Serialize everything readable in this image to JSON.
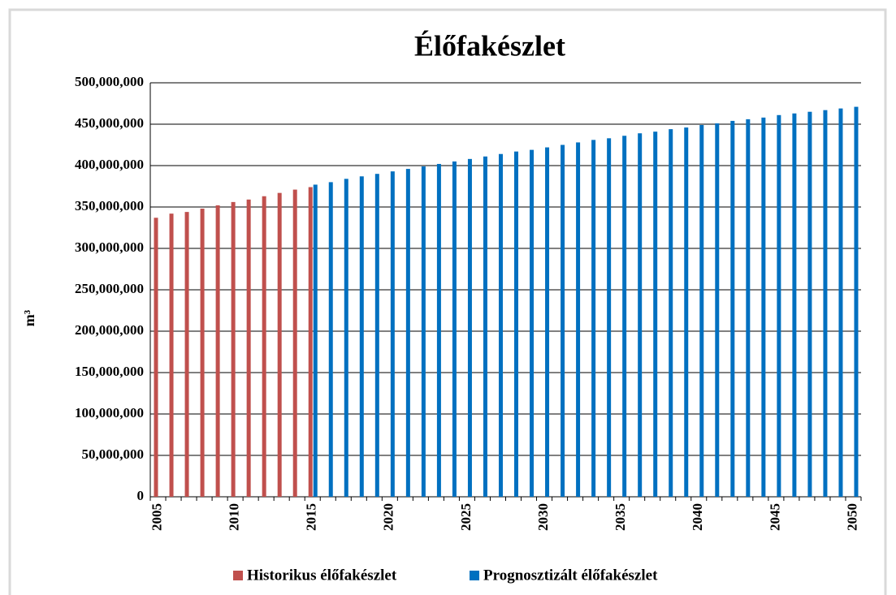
{
  "chart_data": {
    "type": "bar",
    "title": "Élőfakészlet",
    "y_label": "m³",
    "categories": [
      "2005",
      null,
      null,
      null,
      null,
      "2010",
      null,
      null,
      null,
      null,
      "2015",
      null,
      null,
      null,
      null,
      "2020",
      null,
      null,
      null,
      null,
      "2025",
      null,
      null,
      null,
      null,
      "2030",
      null,
      null,
      null,
      null,
      "2035",
      null,
      null,
      null,
      null,
      "2040",
      null,
      null,
      null,
      null,
      "2045",
      null,
      null,
      null,
      null,
      "2050"
    ],
    "series": [
      {
        "name": "Historikus élőfakészlet",
        "color": "#c0504d",
        "values": [
          337000000,
          342000000,
          344000000,
          348000000,
          352000000,
          356000000,
          359000000,
          363000000,
          367000000,
          371000000,
          374000000,
          null,
          null,
          null,
          null,
          null,
          null,
          null,
          null,
          null,
          null,
          null,
          null,
          null,
          null,
          null,
          null,
          null,
          null,
          null,
          null,
          null,
          null,
          null,
          null,
          null,
          null,
          null,
          null,
          null,
          null,
          null,
          null,
          null,
          null,
          null
        ]
      },
      {
        "name": "Prognosztizált élőfakészlet",
        "color": "#0070c0",
        "values": [
          null,
          null,
          null,
          null,
          null,
          null,
          null,
          null,
          null,
          null,
          377000000,
          380000000,
          384000000,
          387000000,
          390000000,
          393000000,
          396000000,
          399000000,
          402000000,
          405000000,
          408000000,
          411000000,
          414000000,
          417000000,
          419000000,
          422000000,
          425000000,
          428000000,
          431000000,
          433000000,
          436000000,
          439000000,
          441000000,
          444000000,
          446000000,
          449000000,
          451000000,
          454000000,
          456000000,
          458000000,
          461000000,
          463000000,
          465000000,
          467000000,
          469000000,
          471000000
        ]
      }
    ],
    "ylim": [
      0,
      500000000
    ],
    "yticks": [
      0,
      {
        "value": 50000000,
        "label": "50,000,000"
      },
      {
        "value": 100000000,
        "label": "100,000,000"
      },
      {
        "value": 150000000,
        "label": "150,000,000"
      },
      {
        "value": 200000000,
        "label": "200,000,000"
      },
      {
        "value": 250000000,
        "label": "250,000,000"
      },
      {
        "value": 300000000,
        "label": "300,000,000"
      },
      {
        "value": 350000000,
        "label": "350,000,000"
      },
      {
        "value": 400000000,
        "label": "400,000,000"
      },
      {
        "value": 450000000,
        "label": "450,000,000"
      },
      {
        "value": 500000000,
        "label": "500,000,000"
      }
    ],
    "grid": true,
    "legend": "bottom"
  }
}
